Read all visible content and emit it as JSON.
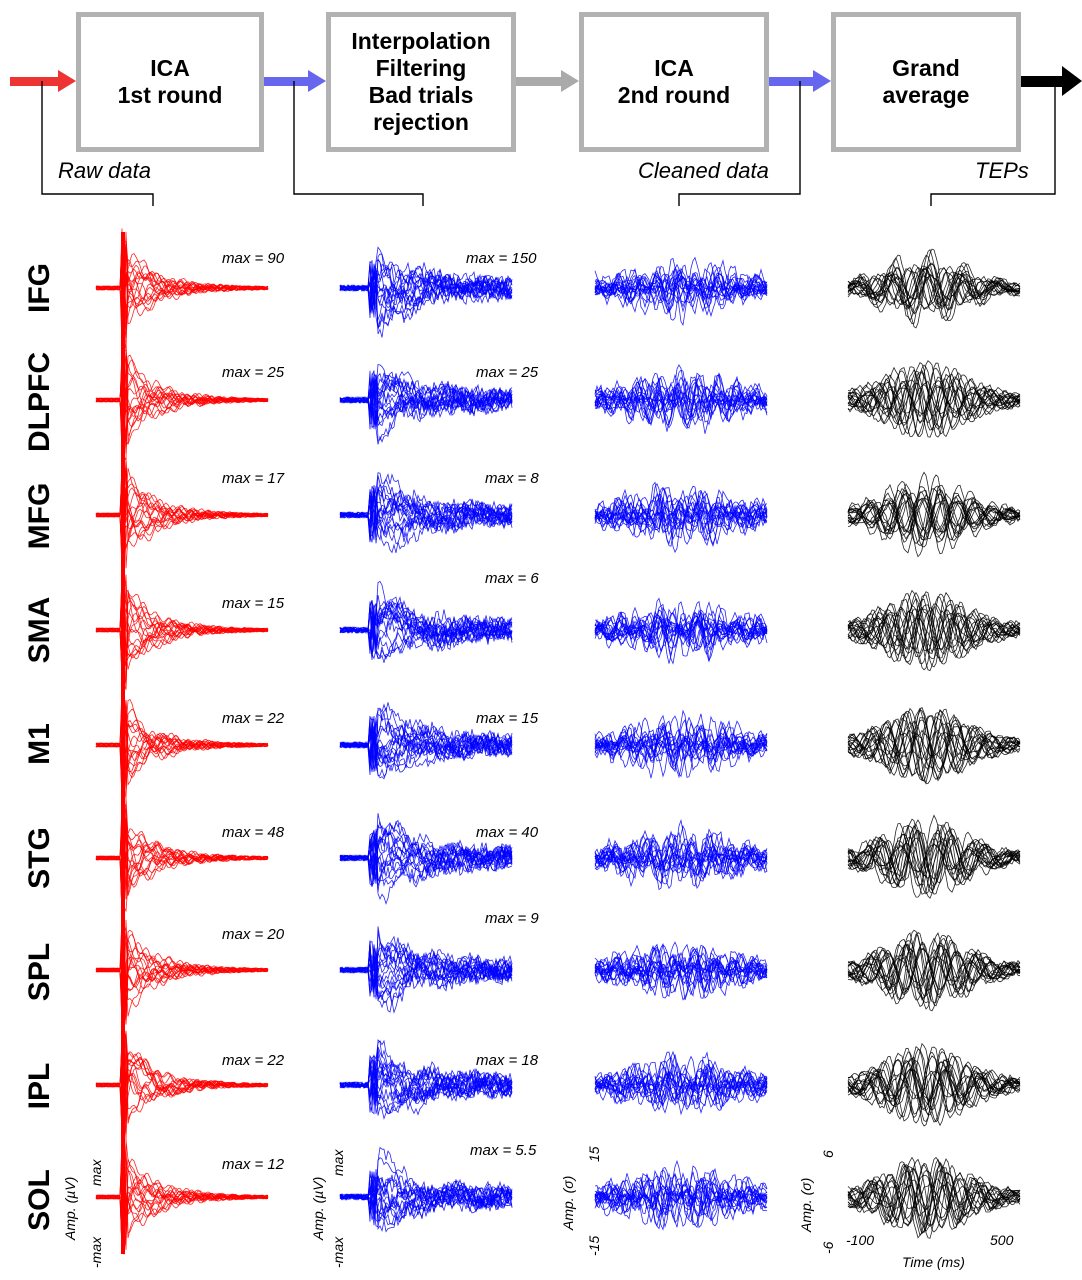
{
  "pipeline": {
    "boxes": [
      {
        "lines": [
          "ICA",
          "1st round"
        ]
      },
      {
        "lines": [
          "Interpolation",
          "Filtering",
          "Bad trials",
          "rejection"
        ]
      },
      {
        "lines": [
          "ICA",
          "2nd round"
        ]
      },
      {
        "lines": [
          "Grand",
          "average"
        ]
      }
    ],
    "labels": {
      "raw": "Raw data",
      "cleaned": "Cleaned data",
      "teps": "TEPs"
    },
    "arrow_colors": [
      "#ee3333",
      "#6666ee",
      "#aaaaaa",
      "#6666ee",
      "#000000"
    ]
  },
  "rows": [
    "IFG",
    "DLPFC",
    "MFG",
    "SMA",
    "M1",
    "STG",
    "SPL",
    "IPL",
    "SOL"
  ],
  "max_values": {
    "raw": [
      "max = 90",
      "max = 25",
      "max = 17",
      "max = 15",
      "max = 22",
      "max = 48",
      "max = 20",
      "max = 22",
      "max = 12"
    ],
    "filtered": [
      "max = 150",
      "max = 25",
      "max = 8",
      "max = 6",
      "max = 15",
      "max = 40",
      "max = 9",
      "max = 18",
      "max = 5.5"
    ]
  },
  "axes": {
    "raw_amp": "Amp. (µV)",
    "raw_top": "max",
    "raw_bottom": "-max",
    "filt_amp": "Amp. (µV)",
    "filt_top": "max",
    "filt_bottom": "-max",
    "clean_amp": "Amp. (σ)",
    "clean_top": "15",
    "clean_bottom": "-15",
    "tep_amp": "Amp. (σ)",
    "tep_top": "6",
    "tep_bottom": "-6",
    "time_start": "-100",
    "time_end": "500",
    "time_label": "Time (ms)"
  },
  "colors": {
    "raw": "#ff0000",
    "filtered": "#0000ff",
    "cleaned": "#0000ff",
    "teps": "#000000",
    "box_border": "#b2b2b2"
  }
}
